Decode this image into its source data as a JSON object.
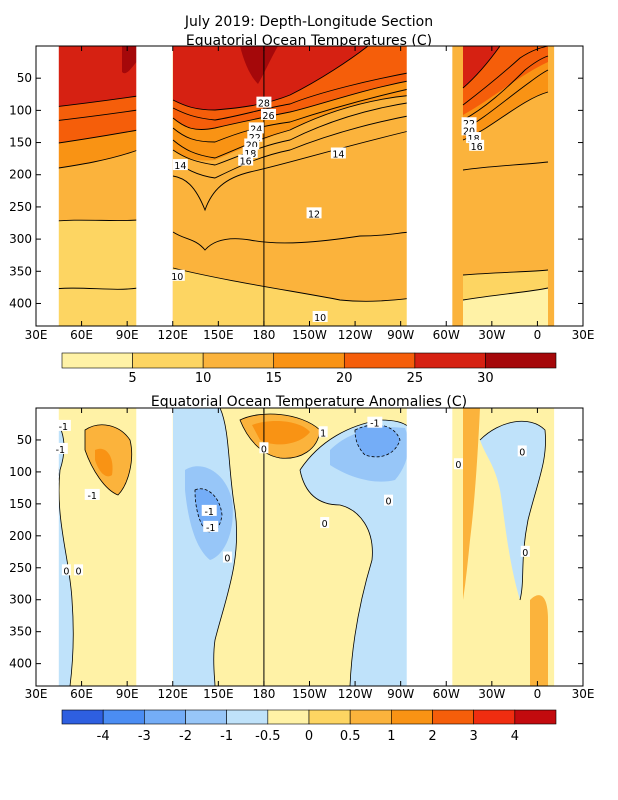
{
  "chart_data": [
    {
      "type": "heatmap",
      "title": "July 2019: Depth-Longitude Section",
      "subtitle": "Equatorial Ocean Temperatures (C)",
      "xlabel": "",
      "ylabel": "",
      "x_ticks": [
        "30E",
        "60E",
        "90E",
        "120E",
        "150E",
        "180",
        "150W",
        "120W",
        "90W",
        "60W",
        "30W",
        "0",
        "30E"
      ],
      "x_tick_values": [
        30,
        60,
        90,
        120,
        150,
        180,
        210,
        240,
        270,
        300,
        330,
        360,
        390
      ],
      "xlim": [
        30,
        390
      ],
      "y_ticks": [
        "50",
        "100",
        "150",
        "200",
        "250",
        "300",
        "350",
        "400"
      ],
      "y_tick_values": [
        50,
        100,
        150,
        200,
        250,
        300,
        350,
        400
      ],
      "ylim": [
        0,
        435
      ],
      "y_inverted": true,
      "reference_line_x": 180,
      "no_data_lon_ranges": [
        [
          30,
          45
        ],
        [
          96,
          120
        ],
        [
          274,
          304
        ],
        [
          371,
          390
        ]
      ],
      "colorbar": {
        "levels": [
          0,
          5,
          10,
          15,
          20,
          25,
          30,
          35
        ],
        "labels": [
          "5",
          "10",
          "15",
          "20",
          "25",
          "30"
        ],
        "label_values": [
          5,
          10,
          15,
          20,
          25,
          30
        ],
        "colors": [
          "#fff2a6",
          "#fdd562",
          "#fbb33c",
          "#f99314",
          "#f55e0a",
          "#d62112",
          "#a5080a"
        ]
      },
      "contour_labels": [
        {
          "text": "28",
          "x": 180,
          "y": 88
        },
        {
          "text": "26",
          "x": 183,
          "y": 107
        },
        {
          "text": "24",
          "x": 175,
          "y": 128
        },
        {
          "text": "22",
          "x": 174,
          "y": 141
        },
        {
          "text": "20",
          "x": 172,
          "y": 153
        },
        {
          "text": "18",
          "x": 171,
          "y": 166
        },
        {
          "text": "16",
          "x": 168,
          "y": 178
        },
        {
          "text": "14",
          "x": 125,
          "y": 185
        },
        {
          "text": "14",
          "x": 229,
          "y": 167
        },
        {
          "text": "12",
          "x": 213,
          "y": 260
        },
        {
          "text": "10",
          "x": 123,
          "y": 357
        },
        {
          "text": "10",
          "x": 217,
          "y": 421
        },
        {
          "text": "22",
          "x": 315,
          "y": 120
        },
        {
          "text": "20",
          "x": 315,
          "y": 131
        },
        {
          "text": "18",
          "x": 318,
          "y": 143
        },
        {
          "text": "16",
          "x": 320,
          "y": 155
        }
      ]
    },
    {
      "type": "heatmap",
      "title": "Equatorial Ocean Temperature Anomalies (C)",
      "xlabel": "",
      "ylabel": "",
      "x_ticks": [
        "30E",
        "60E",
        "90E",
        "120E",
        "150E",
        "180",
        "150W",
        "120W",
        "90W",
        "60W",
        "30W",
        "0",
        "30E"
      ],
      "x_tick_values": [
        30,
        60,
        90,
        120,
        150,
        180,
        210,
        240,
        270,
        300,
        330,
        360,
        390
      ],
      "xlim": [
        30,
        390
      ],
      "y_ticks": [
        "50",
        "100",
        "150",
        "200",
        "250",
        "300",
        "350",
        "400"
      ],
      "y_tick_values": [
        50,
        100,
        150,
        200,
        250,
        300,
        350,
        400
      ],
      "ylim": [
        0,
        435
      ],
      "y_inverted": true,
      "reference_line_x": 180,
      "no_data_lon_ranges": [
        [
          30,
          45
        ],
        [
          96,
          120
        ],
        [
          274,
          304
        ],
        [
          371,
          390
        ]
      ],
      "colorbar": {
        "levels": [
          -5,
          -4,
          -3,
          -2,
          -1,
          -0.5,
          0,
          0.5,
          1,
          2,
          3,
          4,
          5
        ],
        "labels": [
          "-4",
          "-3",
          "-2",
          "-1",
          "-0.5",
          "0",
          "0.5",
          "1",
          "2",
          "3",
          "4"
        ],
        "label_values": [
          -4,
          -3,
          -2,
          -1,
          -0.5,
          0,
          0.5,
          1,
          2,
          3,
          4
        ],
        "colors": [
          "#2e5fe0",
          "#4b8df3",
          "#74adf7",
          "#97c6f8",
          "#bfe2fa",
          "#fff2a6",
          "#fdd562",
          "#fbb33c",
          "#f99314",
          "#f55e0a",
          "#f02d10",
          "#c30a0e"
        ]
      },
      "contour_labels": [
        {
          "text": "-1",
          "x": 48,
          "y": 28
        },
        {
          "text": "-1",
          "x": 46,
          "y": 64
        },
        {
          "text": "-1",
          "x": 67,
          "y": 136
        },
        {
          "text": "-1",
          "x": 144,
          "y": 161
        },
        {
          "text": "-1",
          "x": 145,
          "y": 186
        },
        {
          "text": "-1",
          "x": 253,
          "y": 23
        },
        {
          "text": "1",
          "x": 219,
          "y": 38
        },
        {
          "text": "0",
          "x": 180,
          "y": 63
        },
        {
          "text": "0",
          "x": 156,
          "y": 234
        },
        {
          "text": "0",
          "x": 50,
          "y": 254
        },
        {
          "text": "0",
          "x": 58,
          "y": 254
        },
        {
          "text": "0",
          "x": 220,
          "y": 180
        },
        {
          "text": "0",
          "x": 262,
          "y": 145
        },
        {
          "text": "0",
          "x": 308,
          "y": 88
        },
        {
          "text": "0",
          "x": 350,
          "y": 68
        },
        {
          "text": "0",
          "x": 352,
          "y": 225
        }
      ]
    }
  ]
}
